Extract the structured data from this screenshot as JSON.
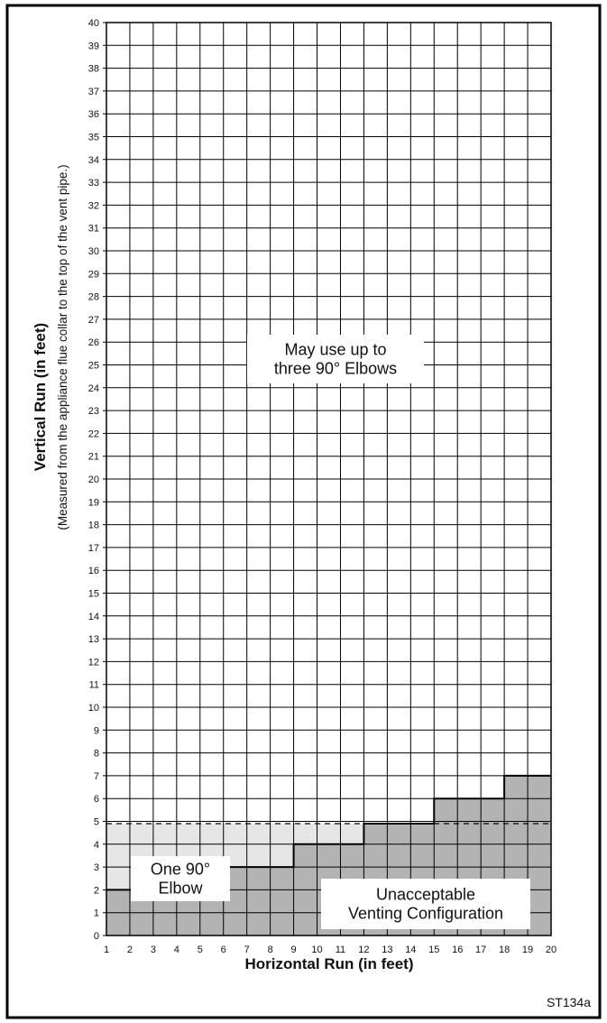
{
  "chart_data": {
    "type": "area",
    "xlabel": "Horizontal Run (in feet)",
    "ylabel": "Vertical Run (in feet)",
    "ylabel_sub": "(Measured from the appliance flue collar to the top of the vent pipe.)",
    "xlim": [
      1,
      20
    ],
    "ylim": [
      0,
      40
    ],
    "grid": true,
    "series": [
      {
        "name": "Unacceptable Venting Configuration",
        "color": "#b3b3b3",
        "steps": [
          {
            "x_start": 1,
            "x_end": 6,
            "y": 2
          },
          {
            "x_start": 6,
            "x_end": 9,
            "y": 3
          },
          {
            "x_start": 9,
            "x_end": 12,
            "y": 4
          },
          {
            "x_start": 12,
            "x_end": 15,
            "y": 4.9
          },
          {
            "x_start": 15,
            "x_end": 18,
            "y": 6
          },
          {
            "x_start": 18,
            "x_end": 20,
            "y": 7
          }
        ]
      },
      {
        "name": "One 90° Elbow",
        "color": "#e6e6e6",
        "upper_limit_y": 4.9
      },
      {
        "name": "May use up to three 90° Elbows",
        "color": "#ffffff"
      }
    ],
    "annotations": {
      "region_three_elbows": [
        "May use up to",
        "three 90° Elbows"
      ],
      "region_one_elbow": [
        "One 90°",
        "Elbow"
      ],
      "region_unacceptable": [
        "Unacceptable",
        "Venting Configuration"
      ]
    }
  },
  "figure_id": "ST134a"
}
